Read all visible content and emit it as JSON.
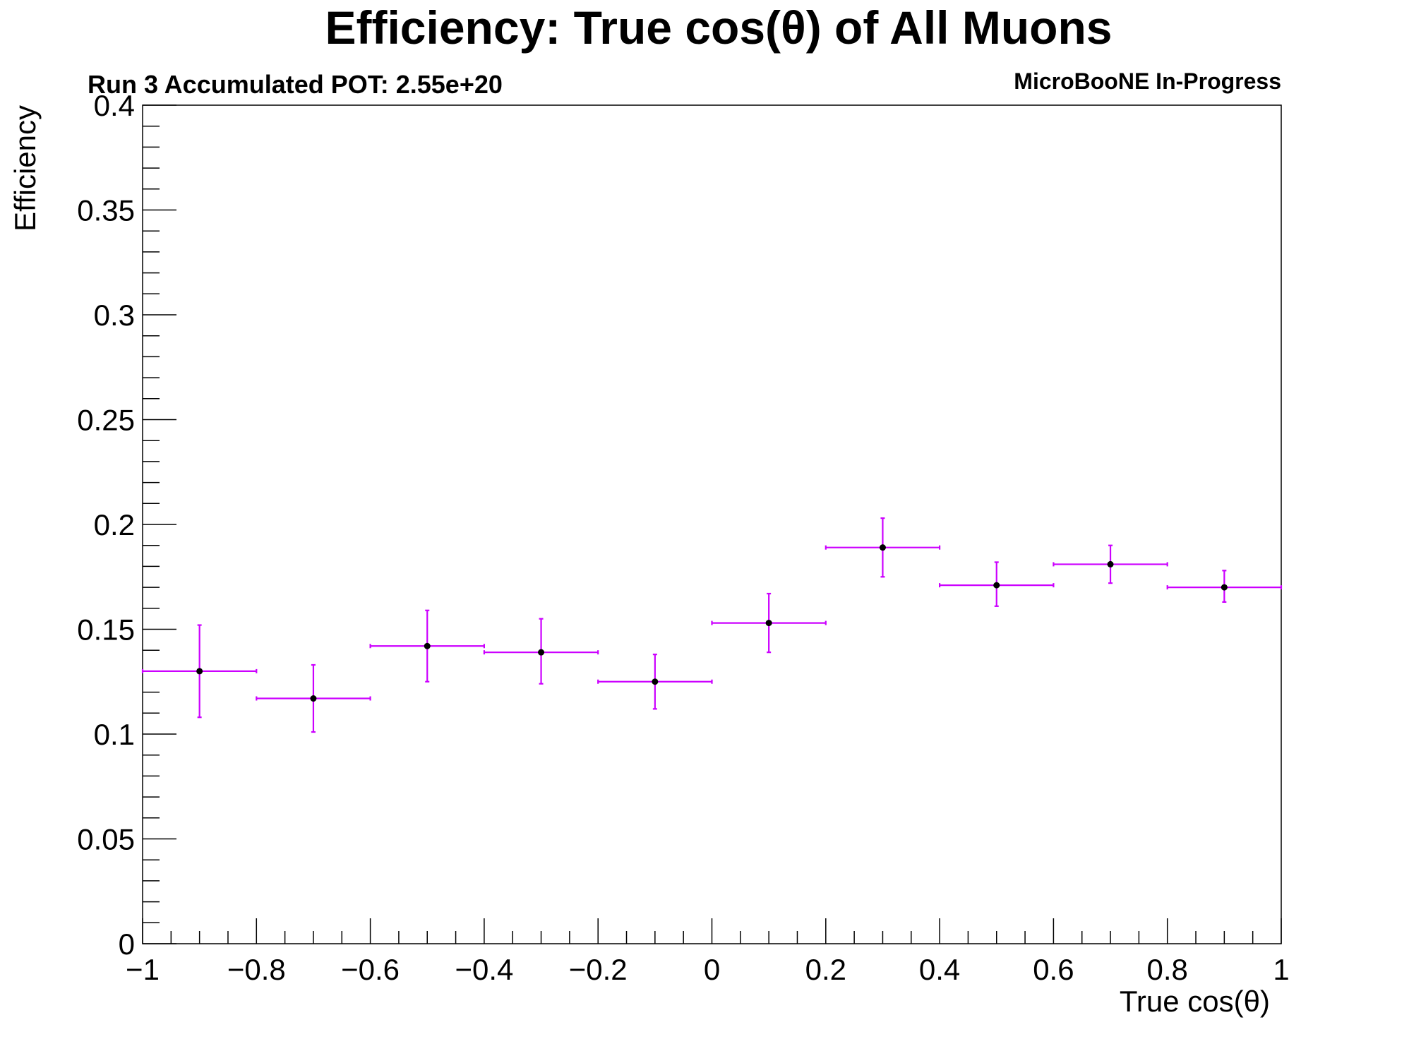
{
  "chart_data": {
    "type": "scatter",
    "title": "Efficiency: True cos(θ) of All Muons",
    "subtitle": "Run 3 Accumulated POT: 2.55e+20",
    "tag": "MicroBooNE In-Progress",
    "xlabel": "True cos(θ)",
    "ylabel": "Efficiency",
    "xlim": [
      -1,
      1
    ],
    "ylim": [
      0,
      0.4
    ],
    "x_ticks": [
      -1,
      -0.8,
      -0.6,
      -0.4,
      -0.2,
      0,
      0.2,
      0.4,
      0.6,
      0.8,
      1
    ],
    "x_tick_labels": [
      "−1",
      "−0.8",
      "−0.6",
      "−0.4",
      "−0.2",
      "0",
      "0.2",
      "0.4",
      "0.6",
      "0.8",
      "1"
    ],
    "y_ticks": [
      0,
      0.05,
      0.1,
      0.15,
      0.2,
      0.25,
      0.3,
      0.35,
      0.4
    ],
    "y_tick_labels": [
      "0",
      "0.05",
      "0.1",
      "0.15",
      "0.2",
      "0.25",
      "0.3",
      "0.35",
      "0.4"
    ],
    "grid": false,
    "series": [
      {
        "color": "#cc00ff",
        "marker_color": "#000000",
        "x": [
          -0.9,
          -0.7,
          -0.5,
          -0.3,
          -0.1,
          0.1,
          0.3,
          0.5,
          0.7,
          0.9
        ],
        "x_err": [
          0.1,
          0.1,
          0.1,
          0.1,
          0.1,
          0.1,
          0.1,
          0.1,
          0.1,
          0.1
        ],
        "y": [
          0.13,
          0.117,
          0.142,
          0.139,
          0.125,
          0.153,
          0.189,
          0.171,
          0.181,
          0.17
        ],
        "y_err_low": [
          0.022,
          0.016,
          0.017,
          0.015,
          0.013,
          0.014,
          0.014,
          0.01,
          0.009,
          0.007
        ],
        "y_err_high": [
          0.022,
          0.016,
          0.017,
          0.016,
          0.013,
          0.014,
          0.014,
          0.011,
          0.009,
          0.008
        ]
      }
    ]
  }
}
